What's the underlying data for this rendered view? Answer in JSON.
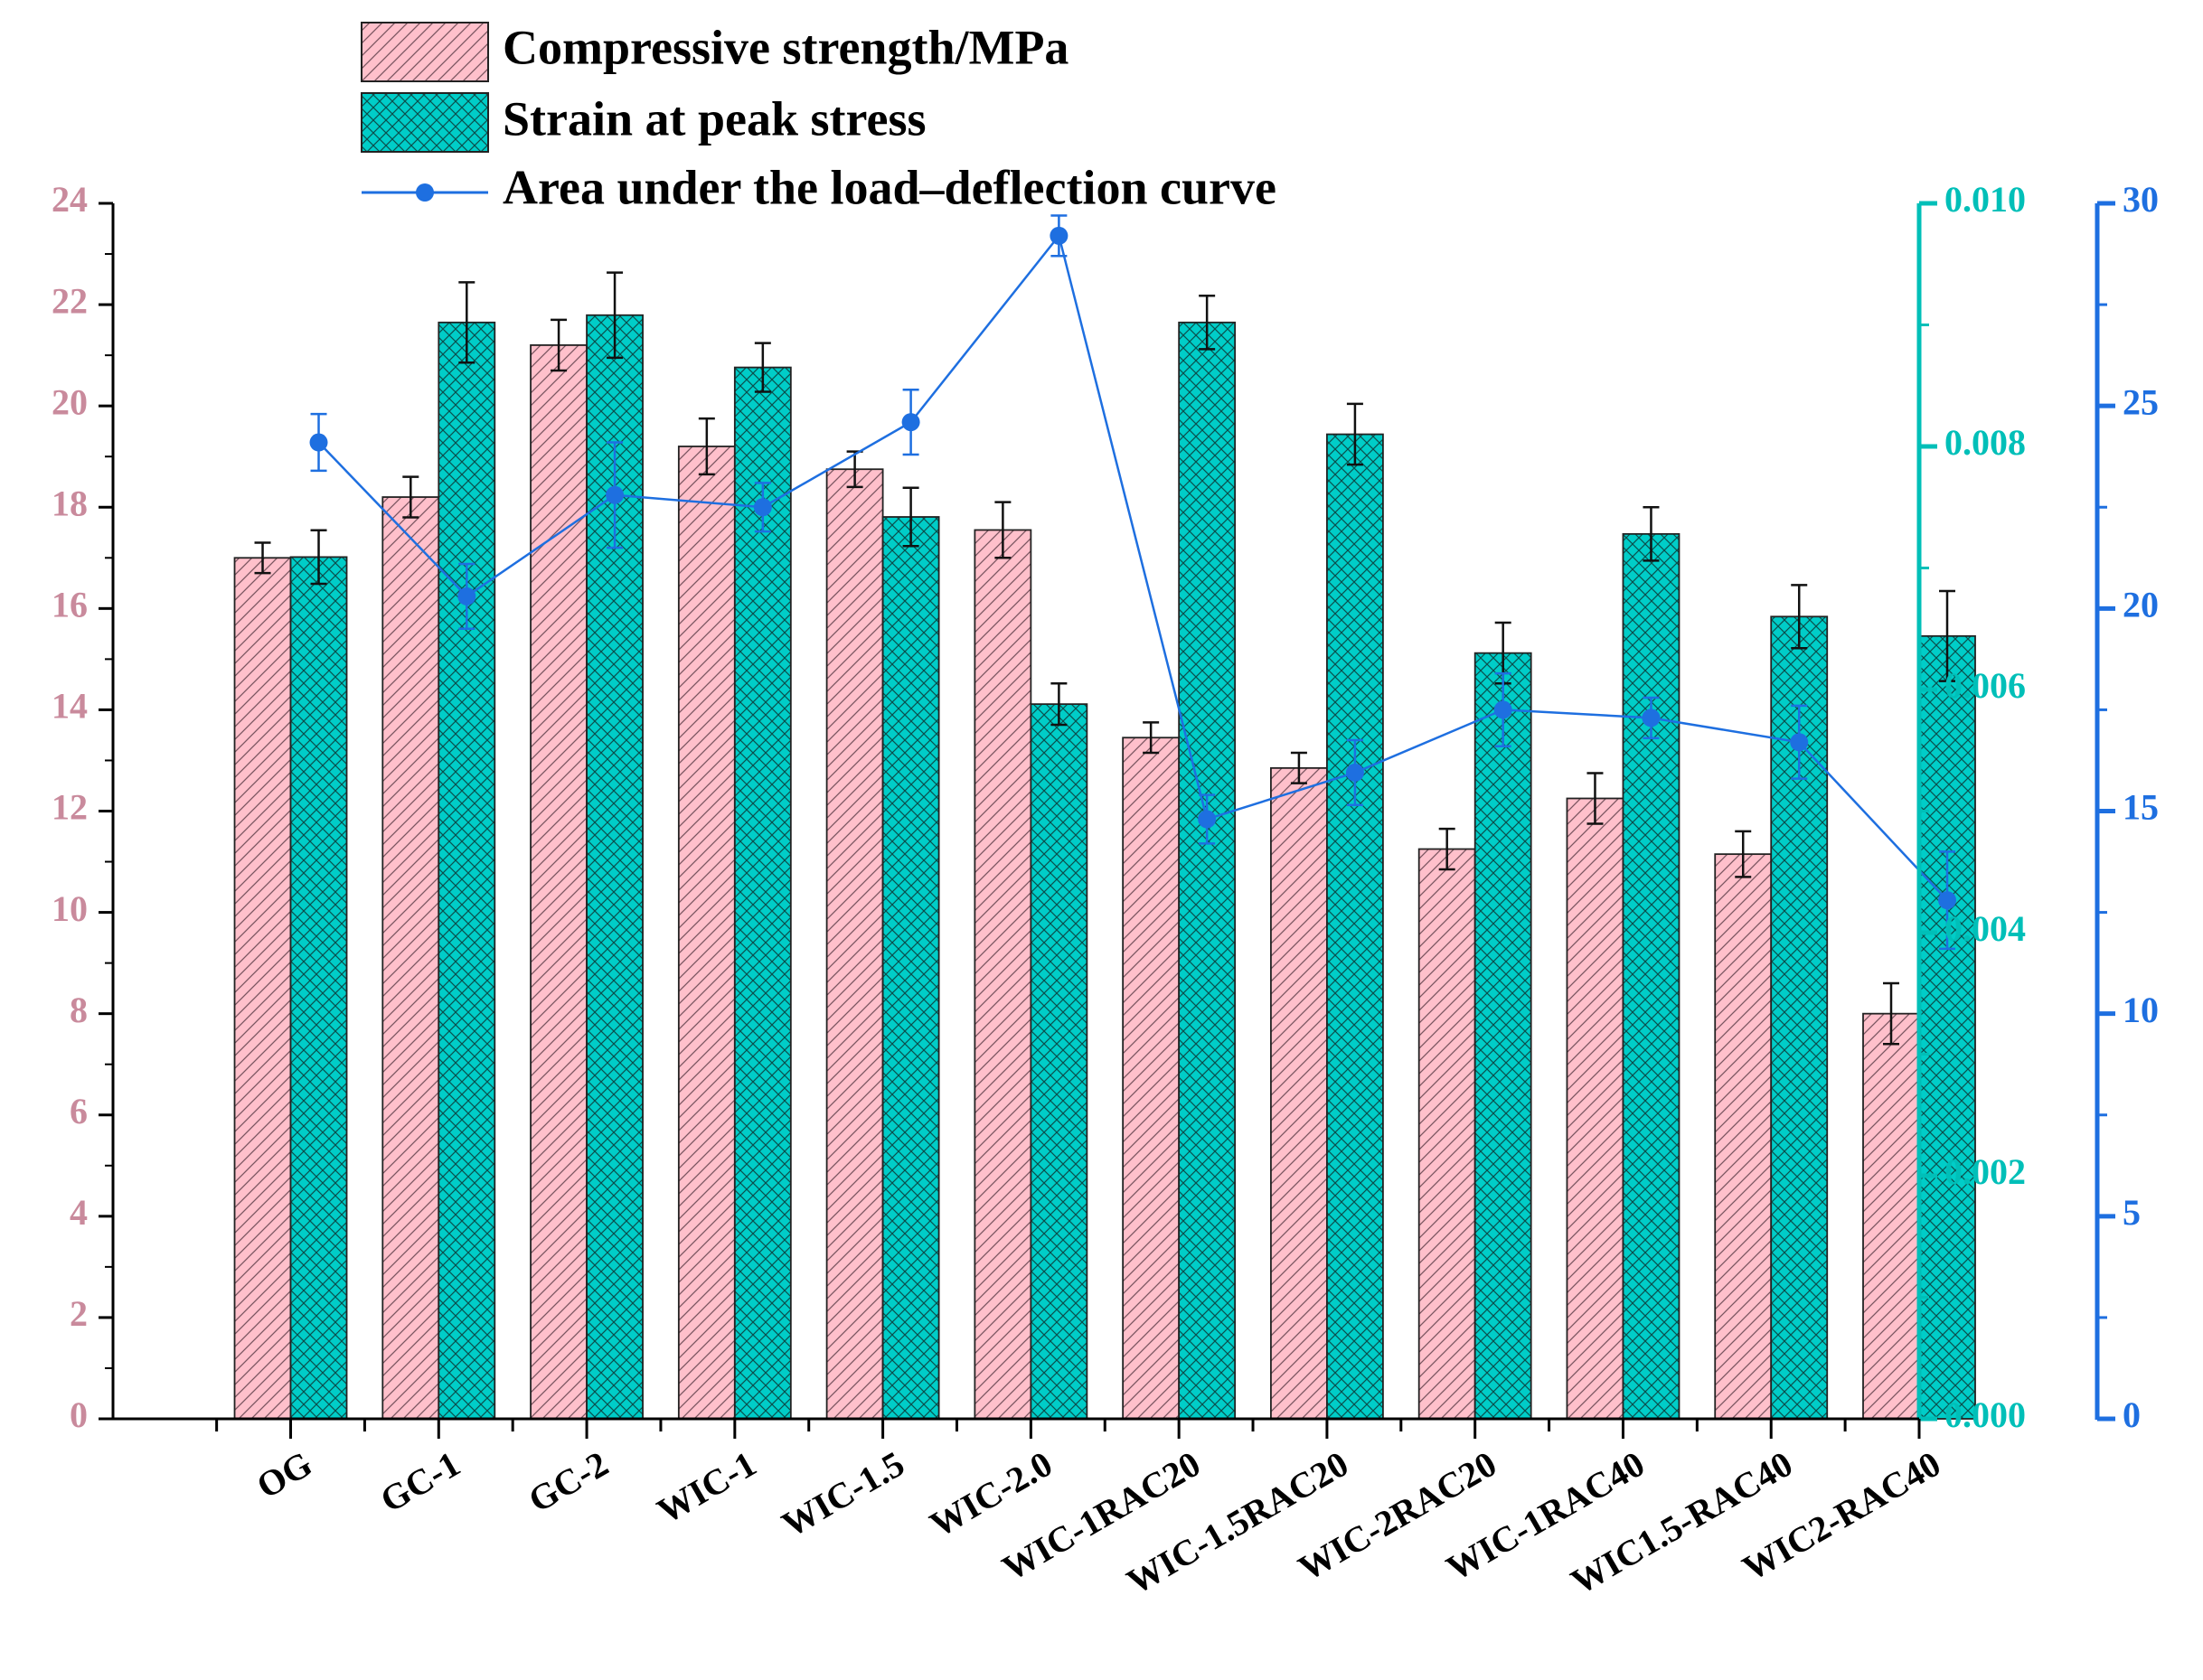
{
  "chart_data": {
    "type": "bar",
    "categories": [
      "OG",
      "GC-1",
      "GC-2",
      "WIC-1",
      "WIC-1.5",
      "WIC-2.0",
      "WIC-1RAC20",
      "WIC-1.5RAC20",
      "WIC-2RAC20",
      "WIC-1RAC40",
      "WIC1.5-RAC40",
      "WIC2-RAC40"
    ],
    "series": [
      {
        "name": "Compressive strength/MPa",
        "kind": "bar",
        "axis": "left",
        "color": "#FFC0CB",
        "hatch": "single-diagonal",
        "values": [
          17.0,
          18.2,
          21.2,
          19.2,
          18.75,
          17.55,
          13.45,
          12.85,
          11.25,
          12.25,
          11.15,
          8.0
        ],
        "errors": [
          0.3,
          0.4,
          0.5,
          0.55,
          0.35,
          0.55,
          0.3,
          0.3,
          0.4,
          0.5,
          0.45,
          0.6
        ]
      },
      {
        "name": "Strain at peak stress",
        "kind": "bar",
        "axis": "right1",
        "color": "#00CDC8",
        "hatch": "crosshatch",
        "values": [
          0.00709,
          0.00902,
          0.00908,
          0.00865,
          0.00742,
          0.00588,
          0.00902,
          0.0081,
          0.0063,
          0.00728,
          0.0066,
          0.00644
        ],
        "errors": [
          0.00022,
          0.00033,
          0.00035,
          0.0002,
          0.00024,
          0.00017,
          0.00022,
          0.00025,
          0.00025,
          0.00022,
          0.00026,
          0.00037
        ]
      },
      {
        "name": "Area under the load–deflection curve",
        "kind": "line",
        "axis": "right2",
        "color": "#1E6FE0",
        "values": [
          24.1,
          20.3,
          22.8,
          22.5,
          24.6,
          29.2,
          14.8,
          15.95,
          17.5,
          17.3,
          16.7,
          12.8
        ],
        "errors": [
          0.7,
          0.8,
          1.3,
          0.6,
          0.8,
          0.5,
          0.6,
          0.8,
          0.9,
          0.5,
          0.9,
          1.2
        ]
      }
    ],
    "axes": {
      "left": {
        "ylim": [
          0,
          24
        ],
        "ticks": [
          "0",
          "2",
          "4",
          "6",
          "8",
          "10",
          "12",
          "14",
          "16",
          "18",
          "20",
          "22",
          "24"
        ],
        "color": "#C98A9C"
      },
      "right1": {
        "ylim": [
          0,
          0.01
        ],
        "ticks": [
          "0.000",
          "0.002",
          "0.004",
          "0.006",
          "0.008",
          "0.010"
        ],
        "color": "#00BFB8"
      },
      "right2": {
        "ylim": [
          0,
          30
        ],
        "ticks": [
          "0",
          "5",
          "10",
          "15",
          "20",
          "25",
          "30"
        ],
        "color": "#1E6FE0"
      }
    },
    "legend": {
      "position": "top-left",
      "entries": [
        "Compressive strength/MPa",
        "Strain at peak stress",
        "Area under the load–deflection curve"
      ]
    },
    "title": "",
    "xlabel": "",
    "ylabel": ""
  }
}
